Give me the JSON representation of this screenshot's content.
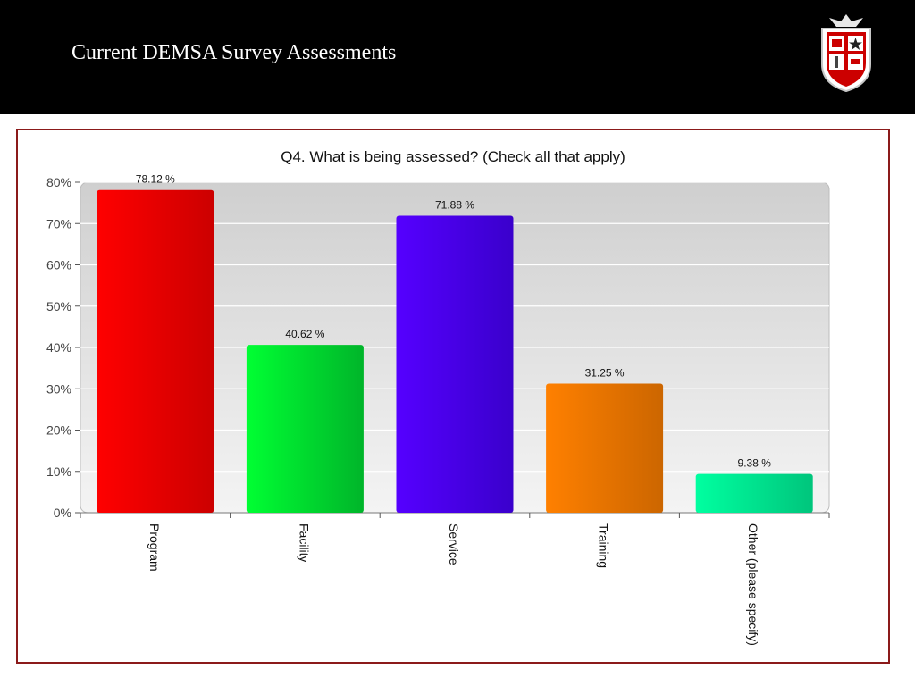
{
  "slide": {
    "title": "Current DEMSA Survey Assessments",
    "logo_icon": "university-shield-logo"
  },
  "colors": {
    "header_bg": "#000000",
    "frame_border": "#8b1a1a",
    "plot_bg": "#d4d4d4"
  },
  "chart_data": {
    "type": "bar",
    "title": "Q4. What is being assessed? (Check all that apply)",
    "xlabel": "",
    "ylabel": "",
    "categories": [
      "Program",
      "Facility",
      "Service",
      "Training",
      "Other (please specify)"
    ],
    "values": [
      78.12,
      40.62,
      71.88,
      31.25,
      9.38
    ],
    "value_labels": [
      "78.12 %",
      "40.62 %",
      "71.88 %",
      "31.25 %",
      "9.38 %"
    ],
    "bar_colors": [
      [
        "#ff0000",
        "#cc0000"
      ],
      [
        "#00ff33",
        "#00b52a"
      ],
      [
        "#5500ff",
        "#3a00cc"
      ],
      [
        "#ff8000",
        "#cc6600"
      ],
      [
        "#00ffa0",
        "#00c57c"
      ]
    ],
    "y_ticks": [
      "0%",
      "10%",
      "20%",
      "30%",
      "40%",
      "50%",
      "60%",
      "70%",
      "80%"
    ],
    "ylim": [
      0,
      80
    ],
    "grid": true,
    "legend": "none"
  }
}
